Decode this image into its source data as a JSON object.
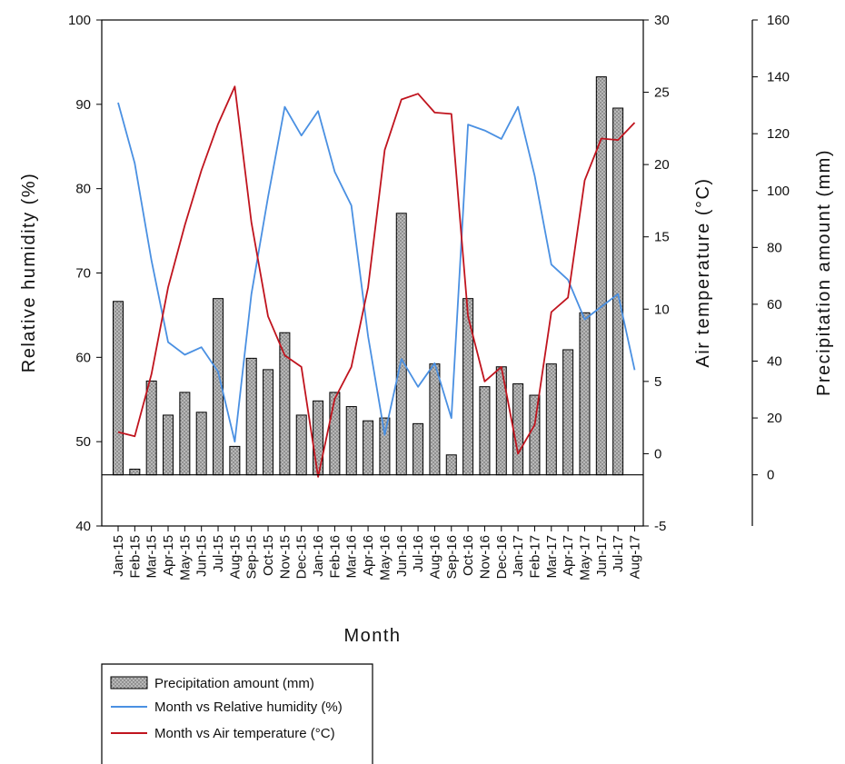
{
  "chart_data": {
    "type": "bar",
    "categories": [
      "Jan-15",
      "Feb-15",
      "Mar-15",
      "Apr-15",
      "May-15",
      "Jun-15",
      "Jul-15",
      "Aug-15",
      "Sep-15",
      "Oct-15",
      "Nov-15",
      "Dec-15",
      "Jan-16",
      "Feb-16",
      "Mar-16",
      "Apr-16",
      "May-16",
      "Jun-16",
      "Jul-16",
      "Aug-16",
      "Sep-16",
      "Oct-16",
      "Nov-16",
      "Dec-16",
      "Jan-17",
      "Feb-17",
      "Mar-17",
      "Apr-17",
      "May-17",
      "Jun-17",
      "Jul-17",
      "Aug-17"
    ],
    "xlabel": "Month",
    "axes": {
      "humidity": {
        "label": "Relative humidity (%)",
        "ylim": [
          40,
          100
        ],
        "ticks": [
          40,
          50,
          60,
          70,
          80,
          90,
          100
        ]
      },
      "temperature": {
        "label": "Air temperature (°C)",
        "ylim": [
          -5,
          30
        ],
        "ticks": [
          -5,
          0,
          5,
          10,
          15,
          20,
          25,
          30
        ]
      },
      "precipitation": {
        "label": "Precipitation amount (mm)",
        "ylim": [
          -18,
          160
        ],
        "ticks": [
          0,
          20,
          40,
          60,
          80,
          100,
          120,
          140,
          160
        ]
      }
    },
    "series": [
      {
        "name": "Precipitation amount (mm)",
        "type": "bar",
        "axis": "precipitation",
        "color": "#b3b3b3",
        "values": [
          61,
          2,
          33,
          21,
          29,
          22,
          62,
          10,
          41,
          37,
          50,
          21,
          26,
          29,
          24,
          19,
          20,
          92,
          18,
          39,
          7,
          62,
          31,
          38,
          32,
          28,
          39,
          44,
          57,
          140,
          129,
          null
        ]
      },
      {
        "name": "Month vs Relative humidity (%)",
        "type": "line",
        "axis": "humidity",
        "color": "#4a90e2",
        "values": [
          90.2,
          83,
          71.5,
          61.8,
          60.3,
          61.2,
          58.3,
          50,
          67.5,
          79,
          89.7,
          86.3,
          89.2,
          82,
          78,
          62.5,
          50.8,
          59.8,
          56.5,
          59.3,
          52.8,
          87.6,
          86.9,
          85.9,
          89.7,
          81.5,
          71,
          69.2,
          64.5,
          66,
          67.5,
          58.5
        ]
      },
      {
        "name": "Month vs Air temperature (°C)",
        "type": "line",
        "axis": "temperature",
        "color": "#c0141e",
        "values": [
          1.5,
          1.2,
          5.5,
          11.5,
          15.8,
          19.6,
          22.8,
          25.4,
          16,
          9.5,
          6.8,
          6,
          -1.6,
          3.8,
          6,
          11.5,
          21,
          24.5,
          24.9,
          23.6,
          23.5,
          9.5,
          5,
          6,
          0,
          2,
          9.8,
          10.8,
          18.9,
          21.8,
          21.7,
          22.9
        ]
      }
    ],
    "legend": {
      "placement": "bottom-left"
    }
  }
}
